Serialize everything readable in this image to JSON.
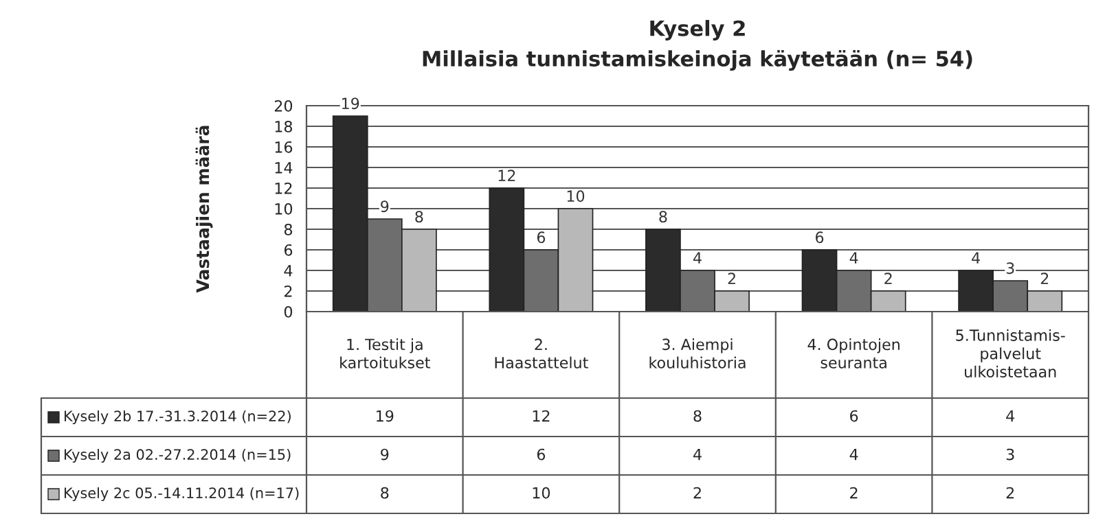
{
  "chart_data": {
    "type": "bar",
    "title": "Kysely 2",
    "subtitle": "Millaisia tunnistamiskeinoja käytetään (n= 54)",
    "ylabel": "Vastaajien määrä",
    "categories": [
      "1. Testit ja\nkartoitukset",
      "2.\nHaastattelut",
      "3. Aiempi\nkouluhistoria",
      "4. Opintojen\nseuranta",
      "5.Tunnistamis-\npalvelut\nulkoistetaan"
    ],
    "series": [
      {
        "name": "Kysely 2b 17.-31.3.2014 (n=22)",
        "color": "#2b2b2b",
        "values": [
          19,
          12,
          8,
          6,
          4
        ]
      },
      {
        "name": "Kysely 2a 02.-27.2.2014 (n=15)",
        "color": "#6e6e6e",
        "values": [
          9,
          6,
          4,
          4,
          3
        ]
      },
      {
        "name": "Kysely 2c 05.-14.11.2014 (n=17)",
        "color": "#b8b8b8",
        "values": [
          8,
          10,
          2,
          2,
          2
        ]
      }
    ],
    "annotations": [
      "19",
      "12",
      "8",
      "6",
      "4",
      "9",
      "6",
      "4",
      "4",
      "3",
      "8",
      "10",
      "2",
      "2",
      "2"
    ],
    "ylim": [
      0,
      20
    ],
    "yticks": [
      0,
      2,
      4,
      6,
      8,
      10,
      12,
      14,
      16,
      18,
      20
    ],
    "grid": "y",
    "data_labels": true,
    "legend": "bottom"
  }
}
